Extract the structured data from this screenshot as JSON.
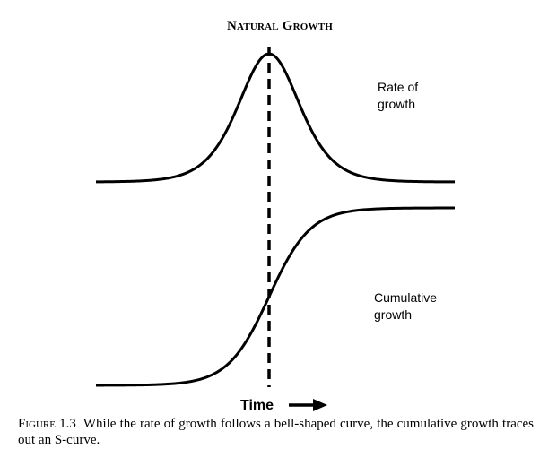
{
  "figure": {
    "title": "Natural Growth",
    "rate_label": [
      "Rate of",
      "growth"
    ],
    "cumulative_label": [
      "Cumulative",
      "growth"
    ],
    "axis_label": "Time"
  },
  "chart_data": {
    "type": "line",
    "series": [
      {
        "name": "Rate of growth",
        "shape": "bell-shaped curve"
      },
      {
        "name": "Cumulative growth",
        "shape": "S-curve"
      }
    ],
    "annotation": "dashed vertical line at peak of rate curve / inflection of S-curve"
  },
  "caption": {
    "figure_word": "Figure",
    "figure_number": "1.3",
    "text": "While the rate of growth follows a bell-shaped curve, the cumulative growth traces out an S-curve."
  }
}
